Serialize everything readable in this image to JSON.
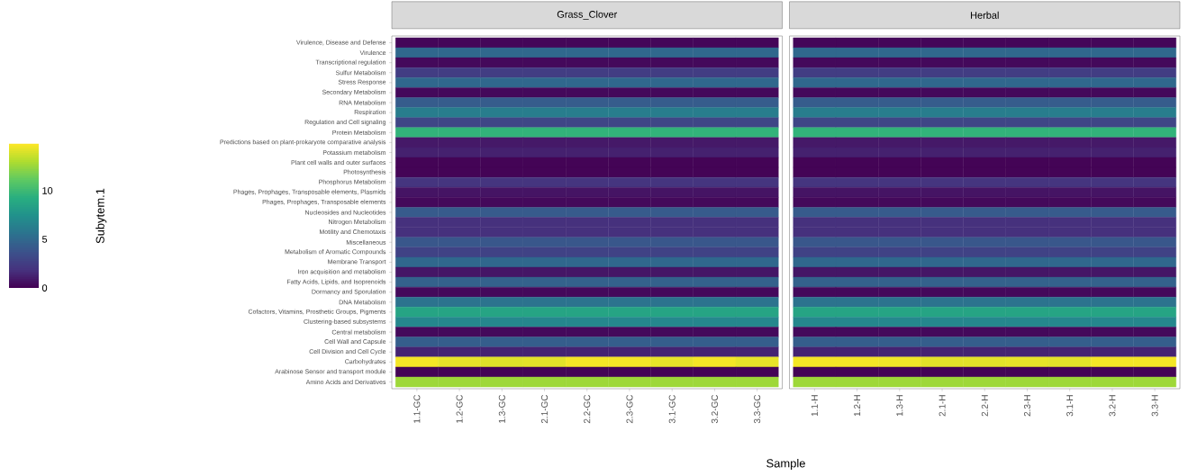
{
  "chart_data": {
    "type": "heatmap",
    "xlabel": "Sample",
    "clabel": "Subytem.1",
    "clim": [
      0,
      14.8
    ],
    "cticks": [
      0,
      5,
      10
    ],
    "annotations": [
      "Grass_Clover",
      "Herbal"
    ],
    "categories": [
      "1.1-GC",
      "1.2-GC",
      "1.3-GC",
      "2.1-GC",
      "2.2-GC",
      "2.3-GC",
      "3.1-GC",
      "3.2-GC",
      "3.3-GC",
      "1.1-H",
      "1.2-H",
      "1.3-H",
      "2.1-H",
      "2.2-H",
      "2.3-H",
      "3.1-H",
      "3.2-H",
      "3.3-H"
    ],
    "y_categories": [
      "Virulence, Disease and Defense",
      "Virulence",
      "Transcriptional regulation",
      "Sulfur Metabolism",
      "Stress Response",
      "Secondary Metabolism",
      "RNA Metabolism",
      "Respiration",
      "Regulation and Cell signaling",
      "Protein Metabolism",
      "Predictions based on plant-prokaryote comparative analysis",
      "Potassium metabolism",
      "Plant cell walls and outer surfaces",
      "Photosynthesis",
      "Phosphorus Metabolism",
      "Phages, Prophages, Transposable elements, Plasmids",
      "Phages, Prophages, Transposable elements",
      "Nucleosides and Nucleotides",
      "Nitrogen Metabolism",
      "Motility and Chemotaxis",
      "Miscellaneous",
      "Metabolism of Aromatic Compounds",
      "Membrane Transport",
      "Iron acquisition and metabolism",
      "Fatty Acids, Lipids, and Isoprenoids",
      "Dormancy and Sporulation",
      "DNA Metabolism",
      "Cofactors, Vitamins, Prosthetic Groups, Pigments",
      "Clustering-based subsystems",
      "Central metabolism",
      "Cell Wall and Capsule",
      "Cell Division and Cell Cycle",
      "Carbohydrates",
      "Arabinose Sensor and transport module",
      "Amino Acids and Derivatives"
    ],
    "cells": [
      [
        0.2,
        0.2,
        0.2,
        0.2,
        0.2,
        0.2,
        0.2,
        0.2,
        0.2,
        0.2,
        0.2,
        0.2,
        0.2,
        0.2,
        0.2,
        0.2,
        0.2,
        0.2
      ],
      [
        5,
        5,
        5,
        5,
        5,
        5,
        5,
        5,
        5,
        5,
        5,
        5,
        5,
        5,
        5,
        5,
        5,
        5
      ],
      [
        0.3,
        0.3,
        0.3,
        0.3,
        0.3,
        0.3,
        0.3,
        0.3,
        0.3,
        0.3,
        0.3,
        0.3,
        0.3,
        0.3,
        0.3,
        0.3,
        0.3,
        0.3
      ],
      [
        2.5,
        2.5,
        2.5,
        2.5,
        2.5,
        2.5,
        2.5,
        2.5,
        2.5,
        2.5,
        2.5,
        2.5,
        2.5,
        2.5,
        2.5,
        2.5,
        2.5,
        2.5
      ],
      [
        5,
        5,
        5,
        5,
        5,
        5,
        5,
        5,
        5,
        5,
        5,
        5,
        5,
        5,
        5,
        5,
        5,
        5
      ],
      [
        0.3,
        0.3,
        0.3,
        0.3,
        0.3,
        0.3,
        0.3,
        0.3,
        0.3,
        0.3,
        0.3,
        0.3,
        0.3,
        0.3,
        0.3,
        0.3,
        0.3,
        0.3
      ],
      [
        4.3,
        4.3,
        4.3,
        4.3,
        4.3,
        4.3,
        4.3,
        4.3,
        4.3,
        4.3,
        4.3,
        4.3,
        4.3,
        4.3,
        4.3,
        4.3,
        4.3,
        4.3
      ],
      [
        6.2,
        6.2,
        6.2,
        6.2,
        6.2,
        6.2,
        6.2,
        6.2,
        6.2,
        6.2,
        6.2,
        6.2,
        6.2,
        6.2,
        6.2,
        6.2,
        6.2,
        6.2
      ],
      [
        3,
        3,
        3,
        3,
        3,
        3,
        3,
        3,
        3,
        3,
        3,
        3,
        3,
        3,
        3,
        3,
        3,
        3
      ],
      [
        9.6,
        9.6,
        9.6,
        9.6,
        9.6,
        9.6,
        9.6,
        9.6,
        9.6,
        9.6,
        9.6,
        9.6,
        9.6,
        9.6,
        9.6,
        9.6,
        9.6,
        9.6
      ],
      [
        0.9,
        0.9,
        0.9,
        0.9,
        0.9,
        0.9,
        0.9,
        0.9,
        0.9,
        0.9,
        0.9,
        0.9,
        0.9,
        0.9,
        0.9,
        0.9,
        0.9,
        0.9
      ],
      [
        1.2,
        1.2,
        1.2,
        1.2,
        1.2,
        1.2,
        1.2,
        1.2,
        1.2,
        1.2,
        1.2,
        1.2,
        1.2,
        1.2,
        1.2,
        1.2,
        1.2,
        1.2
      ],
      [
        0.1,
        0.1,
        0.1,
        0.1,
        0.1,
        0.1,
        0.1,
        0.1,
        0.1,
        0.1,
        0.1,
        0.1,
        0.1,
        0.1,
        0.1,
        0.1,
        0.1,
        0.1
      ],
      [
        0.1,
        0.1,
        0.1,
        0.1,
        0.1,
        0.1,
        0.1,
        0.1,
        0.1,
        0.1,
        0.1,
        0.1,
        0.1,
        0.1,
        0.1,
        0.1,
        0.1,
        0.1
      ],
      [
        2,
        2,
        2,
        2,
        2,
        2,
        2,
        2,
        2,
        2,
        2,
        2,
        2,
        2,
        2,
        2,
        2,
        2
      ],
      [
        0.7,
        0.7,
        0.7,
        0.7,
        0.7,
        0.7,
        0.7,
        0.7,
        0.7,
        0.7,
        0.7,
        0.7,
        0.7,
        0.7,
        0.7,
        0.7,
        0.7,
        0.7
      ],
      [
        0.3,
        0.3,
        0.3,
        0.3,
        0.3,
        0.3,
        0.3,
        0.3,
        0.3,
        0.3,
        0.3,
        0.3,
        0.3,
        0.3,
        0.3,
        0.3,
        0.3,
        0.3
      ],
      [
        4.2,
        4.2,
        4.2,
        4.2,
        4.2,
        4.2,
        4.2,
        4.2,
        4.2,
        4.2,
        4.2,
        4.2,
        4.2,
        4.2,
        4.2,
        4.2,
        4.2,
        4.2
      ],
      [
        1.8,
        1.8,
        1.8,
        1.8,
        1.8,
        1.8,
        1.8,
        1.8,
        1.8,
        1.8,
        1.8,
        1.8,
        1.8,
        1.8,
        1.8,
        1.8,
        1.8,
        1.8
      ],
      [
        1.8,
        1.8,
        1.8,
        1.8,
        1.8,
        1.8,
        1.8,
        1.8,
        1.8,
        1.8,
        1.8,
        1.8,
        1.8,
        1.8,
        1.8,
        1.8,
        1.8,
        1.8
      ],
      [
        4,
        4,
        4,
        4,
        4,
        4,
        4,
        4,
        4,
        4,
        4,
        4,
        4,
        4,
        4,
        4,
        4,
        4
      ],
      [
        2.8,
        2.8,
        2.8,
        2.8,
        2.8,
        2.8,
        2.8,
        2.8,
        2.8,
        2.8,
        2.8,
        2.8,
        2.8,
        2.8,
        2.8,
        2.8,
        2.8,
        2.8
      ],
      [
        5,
        5,
        5,
        5,
        5,
        5,
        5,
        5,
        5,
        5,
        5,
        5,
        5,
        5,
        5,
        5,
        5,
        5
      ],
      [
        0.8,
        0.8,
        0.8,
        0.8,
        0.8,
        0.8,
        0.8,
        0.8,
        0.8,
        0.8,
        0.8,
        0.8,
        0.8,
        0.8,
        0.8,
        0.8,
        0.8,
        0.8
      ],
      [
        4.6,
        4.6,
        4.6,
        4.6,
        4.6,
        4.6,
        4.6,
        4.6,
        4.6,
        4.6,
        4.6,
        4.6,
        4.6,
        4.6,
        4.6,
        4.6,
        4.6,
        4.6
      ],
      [
        0.3,
        0.3,
        0.3,
        0.3,
        0.3,
        0.3,
        0.3,
        0.3,
        0.3,
        0.3,
        0.3,
        0.3,
        0.3,
        0.3,
        0.3,
        0.3,
        0.3,
        0.3
      ],
      [
        5.6,
        5.6,
        5.6,
        5.6,
        5.6,
        5.6,
        5.6,
        5.6,
        5.6,
        5.6,
        5.6,
        5.6,
        5.6,
        5.6,
        5.6,
        5.6,
        5.6,
        5.6
      ],
      [
        8.6,
        8.6,
        8.6,
        8.6,
        8.6,
        8.6,
        8.6,
        8.6,
        8.6,
        8.6,
        8.6,
        8.6,
        8.6,
        8.6,
        8.6,
        8.6,
        8.6,
        8.6
      ],
      [
        6.8,
        6.8,
        6.8,
        6.8,
        6.8,
        6.8,
        6.8,
        6.8,
        6.8,
        6.8,
        6.8,
        6.8,
        6.8,
        6.8,
        6.8,
        6.8,
        6.8,
        6.8
      ],
      [
        0.3,
        0.3,
        0.3,
        0.3,
        0.3,
        0.3,
        0.3,
        0.3,
        0.3,
        0.3,
        0.3,
        0.3,
        0.3,
        0.3,
        0.3,
        0.3,
        0.3,
        0.3
      ],
      [
        4.4,
        4.4,
        4.4,
        4.4,
        4.4,
        4.4,
        4.4,
        4.4,
        4.4,
        4.4,
        4.4,
        4.4,
        4.4,
        4.4,
        4.4,
        4.4,
        4.4,
        4.4
      ],
      [
        1.3,
        1.3,
        1.3,
        1.3,
        1.3,
        1.3,
        1.3,
        1.3,
        1.3,
        1.3,
        1.3,
        1.3,
        1.3,
        1.3,
        1.3,
        1.3,
        1.3,
        1.3
      ],
      [
        14.6,
        14.3,
        14.1,
        14.2,
        14.6,
        14.6,
        14.3,
        14.6,
        14.3,
        14.6,
        14.6,
        14.5,
        14.2,
        14.2,
        14.3,
        14.2,
        14.6,
        14.6
      ],
      [
        0.1,
        0.1,
        0.1,
        0.1,
        0.1,
        0.1,
        0.1,
        0.1,
        0.1,
        0.1,
        0.1,
        0.1,
        0.1,
        0.1,
        0.1,
        0.1,
        0.1,
        0.1
      ],
      [
        12.6,
        12.6,
        12.6,
        12.6,
        12.6,
        12.6,
        12.6,
        12.6,
        12.6,
        12.6,
        12.6,
        12.6,
        12.6,
        12.6,
        12.6,
        12.6,
        12.6,
        12.6
      ]
    ]
  }
}
